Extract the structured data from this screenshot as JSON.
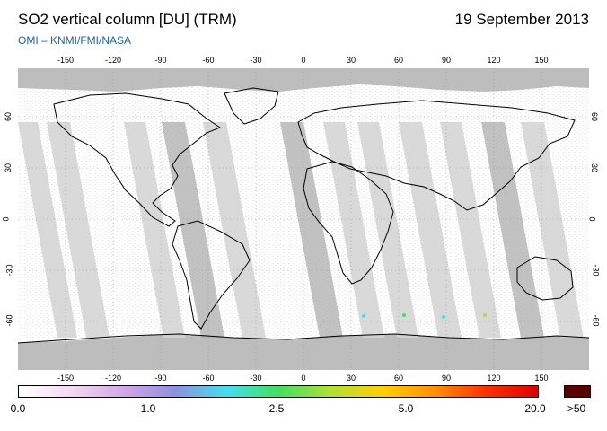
{
  "header": {
    "title": "SO2 vertical column [DU] (TRM)",
    "date": "19 September 2013",
    "credit": "OMI  –  KNMI/FMI/NASA"
  },
  "axes": {
    "lon_ticks": [
      "-150",
      "-120",
      "-90",
      "-60",
      "-30",
      "0",
      "30",
      "60",
      "90",
      "120",
      "150"
    ],
    "lat_ticks": [
      "60",
      "30",
      "0",
      "-30",
      "-60"
    ]
  },
  "colorbar": {
    "labels": [
      "0.0",
      "1.0",
      "2.5",
      "5.0",
      "20.0",
      ">50"
    ],
    "over_color": "#5a0000",
    "gradient": [
      "#ffffff",
      "#f3d9f3",
      "#d6a6e6",
      "#8f8fe0",
      "#40e0f0",
      "#40e060",
      "#b0e030",
      "#ffd000",
      "#ff9000",
      "#ff3000",
      "#e00000"
    ]
  },
  "colors": {
    "swath_dark": "#a8a8a8",
    "swath_light": "#d2d2d2",
    "polar_gap": "#bdbdbd",
    "credit": "#1f5fa8"
  }
}
